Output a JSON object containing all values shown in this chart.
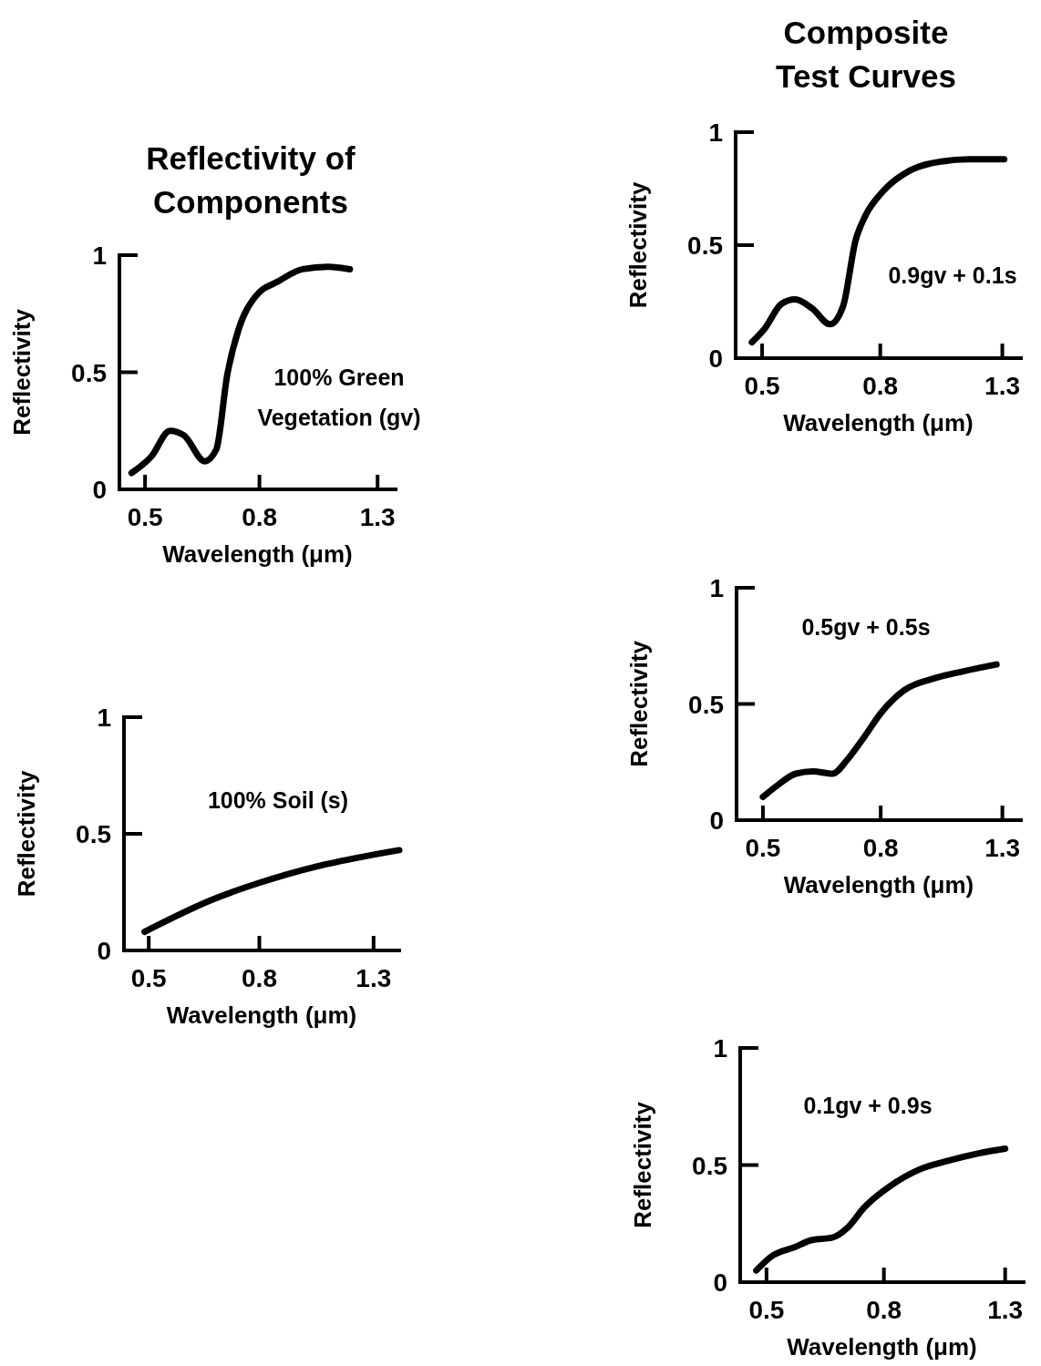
{
  "chart_data": [
    {
      "type": "line",
      "title": "Reflectivity of Components",
      "xlabel": "Wavelength (μm)",
      "ylabel": "Reflectivity",
      "annotations": [
        "100% Green Vegetation (gv)"
      ],
      "log": "x",
      "xlim": [
        0.45,
        1.4
      ],
      "xticks": [
        0.5,
        0.8,
        1.3
      ],
      "ylim": [
        0,
        1
      ],
      "yticks": [
        0,
        0.5,
        1
      ],
      "series": [
        {
          "color": "#000000",
          "x": [
            0.473,
            0.513,
            0.554,
            0.587,
            0.639,
            0.67,
            0.701,
            0.736,
            0.785,
            0.867,
            0.955,
            1.06,
            1.16
          ],
          "values": [
            0.07,
            0.14,
            0.25,
            0.23,
            0.12,
            0.17,
            0.49,
            0.69,
            0.82,
            0.89,
            0.94,
            0.95,
            0.94
          ]
        }
      ]
    },
    {
      "type": "line",
      "xlabel": "Wavelength (μm)",
      "ylabel": "Reflectivity",
      "annotations": [
        "100% Soil (s)"
      ],
      "log": "x",
      "xlim": [
        0.45,
        1.45
      ],
      "xticks": [
        0.5,
        0.8,
        1.3
      ],
      "ylim": [
        0,
        1
      ],
      "yticks": [
        0,
        0.5,
        1
      ],
      "series": [
        {
          "color": "#000000",
          "x": [
            0.491,
            0.658,
            0.8,
            1.02,
            1.23,
            1.45
          ],
          "values": [
            0.08,
            0.22,
            0.29,
            0.36,
            0.4,
            0.43
          ]
        }
      ]
    },
    {
      "type": "line",
      "title": "Composite Test Curves",
      "xlabel": "Wavelength (μm)",
      "ylabel": "Reflectivity",
      "annotations": [
        "0.9gv + 0.1s"
      ],
      "log": "x",
      "xlim": [
        0.45,
        1.4
      ],
      "xticks": [
        0.5,
        0.8,
        1.3
      ],
      "ylim": [
        0,
        1
      ],
      "yticks": [
        0,
        0.5,
        1
      ],
      "series": [
        {
          "color": "#000000",
          "x": [
            0.48,
            0.505,
            0.54,
            0.57,
            0.61,
            0.655,
            0.69,
            0.725,
            0.754,
            0.81,
            0.9,
            1.02,
            1.14,
            1.31
          ],
          "values": [
            0.07,
            0.13,
            0.24,
            0.26,
            0.22,
            0.15,
            0.23,
            0.52,
            0.63,
            0.74,
            0.83,
            0.87,
            0.88,
            0.88
          ]
        }
      ]
    },
    {
      "type": "line",
      "xlabel": "Wavelength (μm)",
      "ylabel": "Reflectivity",
      "annotations": [
        "0.5gv + 0.5s"
      ],
      "log": "x",
      "xlim": [
        0.45,
        1.4
      ],
      "xticks": [
        0.5,
        0.8,
        1.3
      ],
      "ylim": [
        0,
        1
      ],
      "yticks": [
        0,
        0.5,
        1
      ],
      "series": [
        {
          "color": "#000000",
          "x": [
            0.5,
            0.53,
            0.57,
            0.61,
            0.66,
            0.7,
            0.75,
            0.8,
            0.88,
            0.99,
            1.11,
            1.27
          ],
          "values": [
            0.1,
            0.15,
            0.2,
            0.21,
            0.2,
            0.26,
            0.36,
            0.46,
            0.56,
            0.61,
            0.64,
            0.67
          ]
        }
      ]
    },
    {
      "type": "line",
      "xlabel": "Wavelength (μm)",
      "ylabel": "Reflectivity",
      "annotations": [
        "0.1gv + 0.9s"
      ],
      "log": "x",
      "xlim": [
        0.45,
        1.4
      ],
      "xticks": [
        0.5,
        0.8,
        1.3
      ],
      "ylim": [
        0,
        1
      ],
      "yticks": [
        0,
        0.5,
        1
      ],
      "series": [
        {
          "color": "#000000",
          "x": [
            0.48,
            0.51,
            0.56,
            0.6,
            0.65,
            0.69,
            0.74,
            0.82,
            0.92,
            1.04,
            1.17,
            1.3
          ],
          "values": [
            0.05,
            0.11,
            0.15,
            0.18,
            0.19,
            0.23,
            0.32,
            0.41,
            0.48,
            0.52,
            0.55,
            0.57
          ]
        }
      ]
    }
  ]
}
